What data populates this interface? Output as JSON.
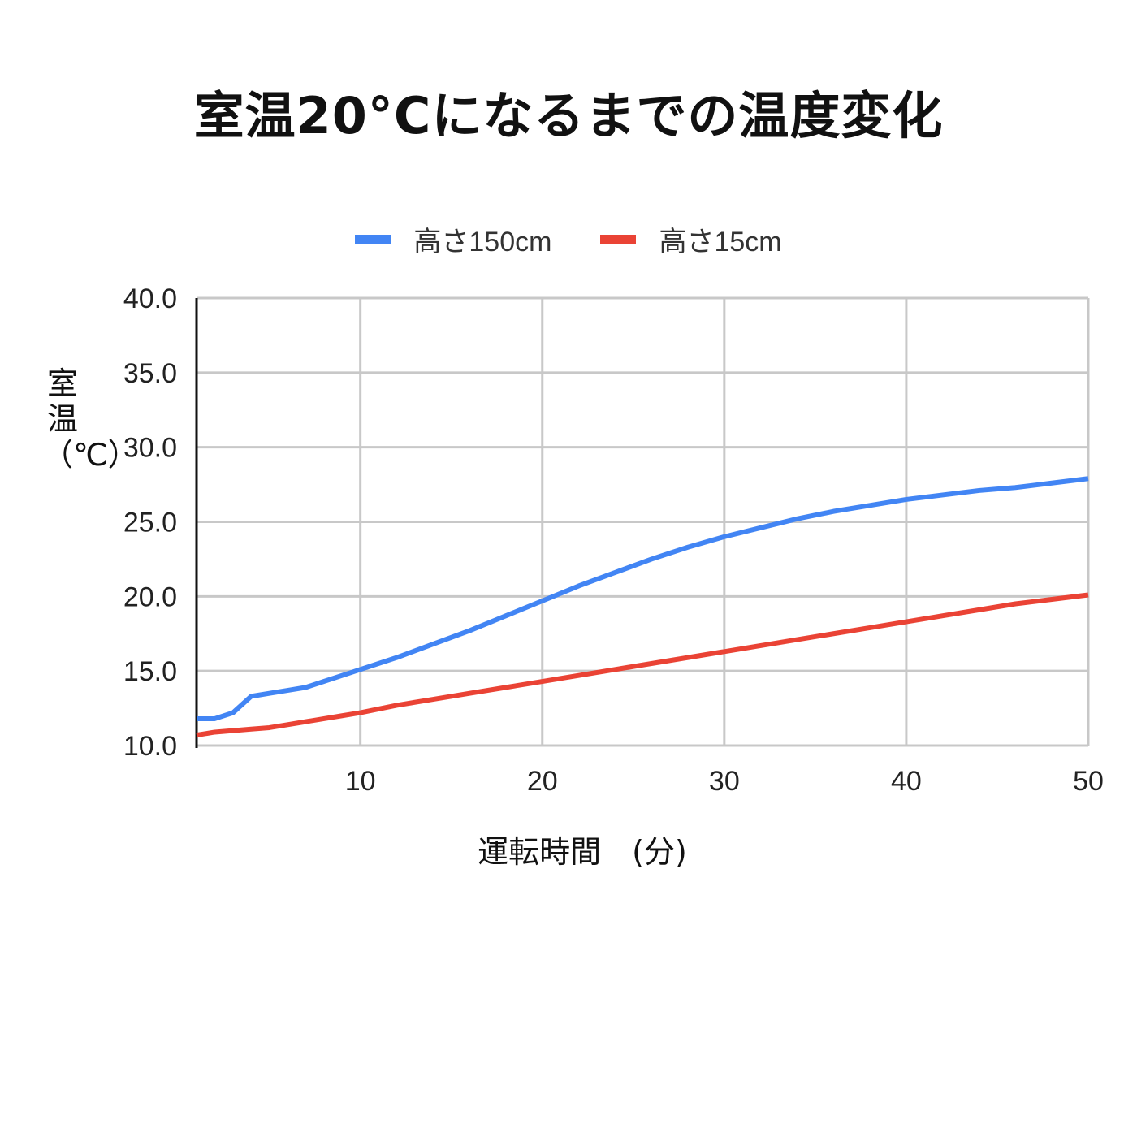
{
  "title": "室温20°Cになるまでの温度変化",
  "legend": [
    {
      "label": "高さ150cm",
      "color": "#4285f4"
    },
    {
      "label": "高さ15cm",
      "color": "#ea4335"
    }
  ],
  "axis": {
    "ylabel": "室温（℃）",
    "xlabel": "運転時間　(分)"
  },
  "chart_data": {
    "type": "line",
    "title": "室温20°Cになるまでの温度変化",
    "xlabel": "運転時間 (分)",
    "ylabel": "室温 (℃)",
    "xlim": [
      1,
      50
    ],
    "ylim": [
      10,
      40
    ],
    "x_ticks": [
      10,
      20,
      30,
      40,
      50
    ],
    "y_ticks": [
      "10.0",
      "15.0",
      "20.0",
      "25.0",
      "30.0",
      "35.0",
      "40.0"
    ],
    "highlighted_tick": "20.0",
    "grid": true,
    "legend_position": "top",
    "x": [
      1,
      2,
      3,
      4,
      5,
      6,
      7,
      8,
      9,
      10,
      12,
      14,
      16,
      18,
      20,
      22,
      24,
      26,
      28,
      30,
      32,
      34,
      36,
      38,
      40,
      42,
      44,
      46,
      48,
      50
    ],
    "series": [
      {
        "name": "高さ150cm",
        "color": "#4285f4",
        "values": [
          11.8,
          11.8,
          12.2,
          13.3,
          13.5,
          13.7,
          13.9,
          14.3,
          14.7,
          15.1,
          15.9,
          16.8,
          17.7,
          18.7,
          19.7,
          20.7,
          21.6,
          22.5,
          23.3,
          24.0,
          24.6,
          25.2,
          25.7,
          26.1,
          26.5,
          26.8,
          27.1,
          27.3,
          27.6,
          27.9
        ]
      },
      {
        "name": "高さ15cm",
        "color": "#ea4335",
        "values": [
          10.7,
          10.9,
          11.0,
          11.1,
          11.2,
          11.4,
          11.6,
          11.8,
          12.0,
          12.2,
          12.7,
          13.1,
          13.5,
          13.9,
          14.3,
          14.7,
          15.1,
          15.5,
          15.9,
          16.3,
          16.7,
          17.1,
          17.5,
          17.9,
          18.3,
          18.7,
          19.1,
          19.5,
          19.8,
          20.1
        ]
      }
    ]
  }
}
